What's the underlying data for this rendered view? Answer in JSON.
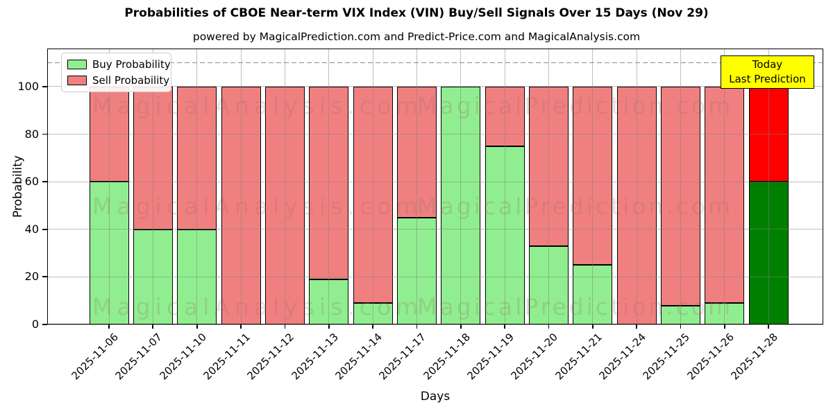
{
  "title": "Probabilities of CBOE Near-term VIX Index (VIN) Buy/Sell Signals Over 15 Days (Nov 29)",
  "subtitle": "powered by MagicalPrediction.com and Predict-Price.com and MagicalAnalysis.com",
  "axes": {
    "xlabel": "Days",
    "ylabel": "Probability"
  },
  "legend": {
    "items": [
      {
        "label": "Buy Probability",
        "color": "#90ee90"
      },
      {
        "label": "Sell Probability",
        "color": "#f08080"
      }
    ]
  },
  "today_box": {
    "line1": "Today",
    "line2": "Last Prediction",
    "bg_color": "#ffff00",
    "border_color": "#000000"
  },
  "watermarks": {
    "left": "MagicalAnalysis.com",
    "right": "MagicalPrediction.com"
  },
  "chart_data": {
    "type": "bar",
    "stacked": true,
    "title": "Probabilities of CBOE Near-term VIX Index (VIN) Buy/Sell Signals Over 15 Days (Nov 29)",
    "xlabel": "Days",
    "ylabel": "Probability",
    "categories": [
      "2025-11-06",
      "2025-11-07",
      "2025-11-10",
      "2025-11-11",
      "2025-11-12",
      "2025-11-13",
      "2025-11-14",
      "2025-11-17",
      "2025-11-18",
      "2025-11-19",
      "2025-11-20",
      "2025-11-21",
      "2025-11-24",
      "2025-11-25",
      "2025-11-26",
      "2025-11-28"
    ],
    "series": [
      {
        "name": "Buy Probability",
        "color": "#90ee90",
        "values": [
          60,
          40,
          40,
          0,
          0,
          19,
          9,
          45,
          100,
          75,
          33,
          25,
          0,
          8,
          9,
          60
        ]
      },
      {
        "name": "Sell Probability",
        "color": "#f08080",
        "values": [
          40,
          60,
          60,
          100,
          100,
          81,
          91,
          55,
          0,
          25,
          67,
          75,
          100,
          92,
          91,
          40
        ]
      }
    ],
    "last_bar_highlight": {
      "buy_color": "#008000",
      "sell_color": "#ff0000"
    },
    "bar_edge_color": "#000000",
    "yticks": [
      0,
      20,
      40,
      60,
      80,
      100
    ],
    "ylim": [
      0,
      116
    ],
    "dashed_line_y": 110,
    "dashed_line_color": "#8c8c8c",
    "grid": true,
    "grid_color": "rgba(128,128,128,0.5)",
    "legend_position": "upper left"
  }
}
